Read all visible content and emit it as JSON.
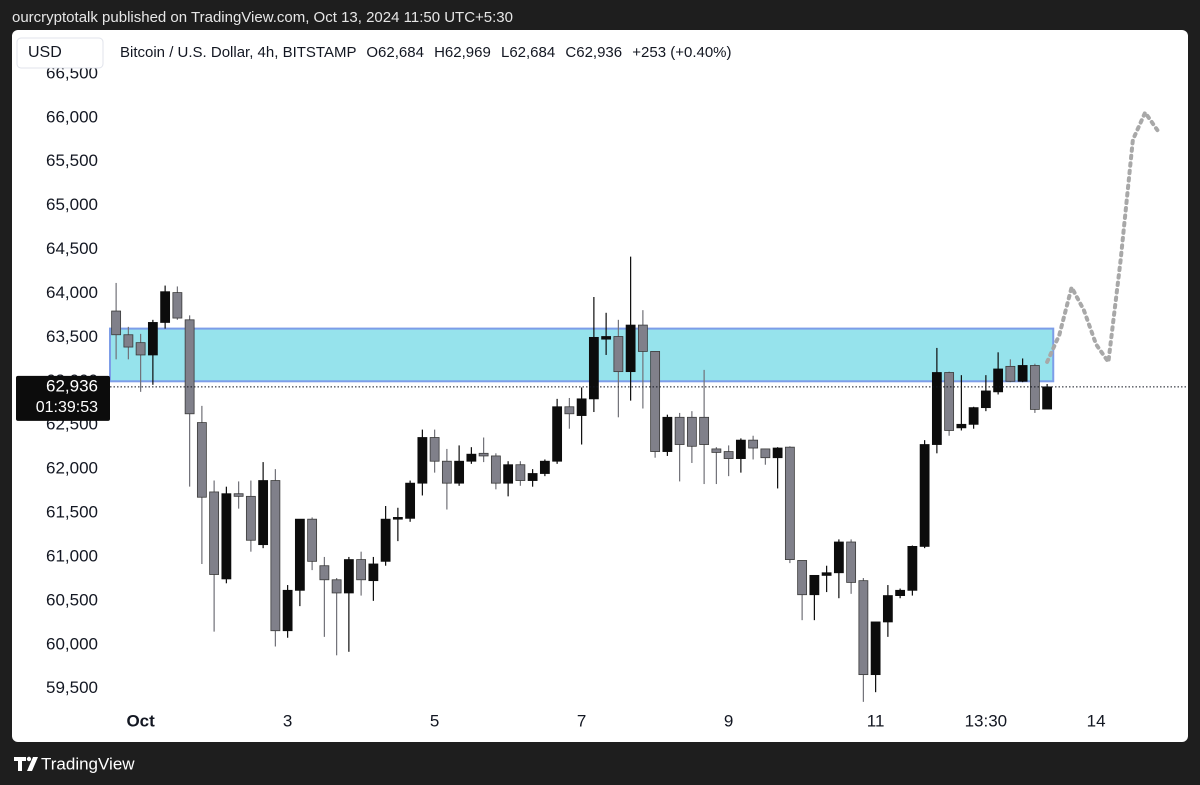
{
  "header": {
    "publisher": "ourcryptotalk published on TradingView.com, Oct 13, 2024 11:50 UTC+5:30",
    "brand": "TradingView"
  },
  "chart_data": {
    "type": "candlestick",
    "currency": "USD",
    "symbol": "Bitcoin / U.S. Dollar, 4h, BITSTAMP",
    "ohlc_labels": [
      "O62,684",
      "H62,969",
      "L62,684",
      "C62,936"
    ],
    "change": "+253 (+0.40%)",
    "last_price": {
      "value": 62936,
      "label": "62,936"
    },
    "countdown": "01:39:53",
    "up_color": "#0c0c0c",
    "down_color": "#80808a",
    "zone": [
      63000,
      63600
    ],
    "zone_color": "#96e3ec",
    "projection_color": "#a8a8a8",
    "grid": false,
    "ylim": [
      59280,
      67000
    ],
    "yticks": [
      {
        "value": 59500,
        "label": "59,500"
      },
      {
        "value": 60000,
        "label": "60,000"
      },
      {
        "value": 60500,
        "label": "60,500"
      },
      {
        "value": 61000,
        "label": "61,000"
      },
      {
        "value": 61500,
        "label": "61,500"
      },
      {
        "value": 62000,
        "label": "62,000"
      },
      {
        "value": 62500,
        "label": "62,500"
      },
      {
        "value": 63000,
        "label": "63,000"
      },
      {
        "value": 63500,
        "label": "63,500"
      },
      {
        "value": 64000,
        "label": "64,000"
      },
      {
        "value": 64500,
        "label": "64,500"
      },
      {
        "value": 65000,
        "label": "65,000"
      },
      {
        "value": 65500,
        "label": "65,500"
      },
      {
        "value": 66000,
        "label": "66,000"
      },
      {
        "value": 66500,
        "label": "66,500"
      }
    ],
    "categories": [
      null,
      null,
      "Oct",
      null,
      null,
      null,
      null,
      null,
      null,
      null,
      null,
      null,
      null,
      null,
      "3",
      null,
      null,
      null,
      null,
      null,
      null,
      null,
      null,
      null,
      null,
      null,
      "5",
      null,
      null,
      null,
      null,
      null,
      null,
      null,
      null,
      null,
      null,
      null,
      "7",
      null,
      null,
      null,
      null,
      null,
      null,
      null,
      null,
      null,
      null,
      null,
      "9",
      null,
      null,
      null,
      null,
      null,
      null,
      null,
      null,
      null,
      null,
      null,
      "11",
      null,
      null,
      null,
      null,
      null,
      null,
      null,
      null,
      "13:30",
      null,
      null,
      null,
      null,
      null,
      null,
      null,
      null,
      "14",
      null,
      null,
      null,
      null,
      null,
      null,
      null
    ],
    "open": [
      63800,
      63530,
      63440,
      63300,
      63670,
      64010,
      63700,
      62530,
      61740,
      60750,
      61720,
      61690,
      61140,
      61870,
      60160,
      60620,
      61430,
      60900,
      60740,
      60590,
      60970,
      60730,
      60950,
      61430,
      61440,
      61840,
      62360,
      62090,
      61840,
      62090,
      62180,
      62150,
      61840,
      62050,
      61870,
      61950,
      62090,
      62710,
      62610,
      62800,
      63480,
      63510,
      63110,
      63640,
      63340,
      62200,
      62590,
      62590,
      62590,
      62230,
      62200,
      62120,
      62330,
      62230,
      62130,
      62250,
      60960,
      60570,
      60790,
      60820,
      61170,
      60730,
      59660,
      60260,
      60560,
      60620,
      61120,
      62280,
      63100,
      62470,
      62510,
      62700,
      62880,
      63170,
      63000,
      63180,
      62684,
      null,
      null,
      null,
      null,
      null,
      null,
      null,
      null,
      null,
      null,
      null
    ],
    "high": [
      64120,
      63620,
      63540,
      63700,
      64090,
      64080,
      63750,
      62720,
      61870,
      61800,
      61860,
      61870,
      62080,
      62000,
      60680,
      61430,
      61450,
      61000,
      60760,
      61000,
      61060,
      61000,
      61580,
      61560,
      61870,
      62450,
      62450,
      62230,
      62270,
      62250,
      62360,
      62180,
      62090,
      62090,
      62000,
      62110,
      62800,
      62810,
      62930,
      63960,
      63780,
      63700,
      64420,
      63810,
      63340,
      62620,
      62640,
      62660,
      63130,
      62250,
      62270,
      62350,
      62380,
      62230,
      62250,
      62260,
      60960,
      60790,
      60900,
      61200,
      61200,
      60760,
      60260,
      60680,
      60640,
      61130,
      62330,
      63380,
      63110,
      63070,
      62710,
      63070,
      63330,
      63250,
      63260,
      63200,
      62969,
      null,
      null,
      null,
      null,
      null,
      null,
      null,
      null,
      null,
      null,
      null
    ],
    "low": [
      63250,
      63250,
      62880,
      62960,
      63600,
      63700,
      61800,
      60920,
      60150,
      60700,
      61550,
      61060,
      61100,
      59980,
      60080,
      60440,
      60850,
      60090,
      59880,
      59920,
      60560,
      60500,
      60900,
      61180,
      61400,
      61700,
      61960,
      61540,
      61810,
      62060,
      62080,
      61770,
      61690,
      61810,
      61800,
      61920,
      62060,
      62460,
      62280,
      62650,
      63300,
      62590,
      62780,
      62690,
      62130,
      62150,
      61860,
      62070,
      61830,
      61830,
      61920,
      61960,
      62110,
      62050,
      61780,
      60930,
      60280,
      60280,
      60600,
      60530,
      60580,
      59350,
      59460,
      60090,
      60530,
      60560,
      61100,
      62180,
      62380,
      62440,
      62460,
      62660,
      62850,
      62990,
      62990,
      62640,
      62684,
      null,
      null,
      null,
      null,
      null,
      null,
      null,
      null,
      null,
      null,
      null
    ],
    "close": [
      63530,
      63390,
      63300,
      63670,
      64020,
      63720,
      62630,
      61680,
      60800,
      61720,
      61690,
      61190,
      61870,
      60160,
      60620,
      61430,
      60950,
      60740,
      60590,
      60970,
      60740,
      60920,
      61430,
      61450,
      61840,
      62360,
      62090,
      61840,
      62090,
      62170,
      62150,
      61840,
      62050,
      61870,
      61950,
      62090,
      62710,
      62630,
      62800,
      63500,
      63510,
      63110,
      63640,
      63340,
      62200,
      62590,
      62280,
      62260,
      62280,
      62190,
      62120,
      62330,
      62240,
      62130,
      62240,
      60970,
      60570,
      60790,
      60820,
      61170,
      60710,
      59660,
      60260,
      60560,
      60620,
      61120,
      62280,
      63100,
      62440,
      62510,
      62700,
      62890,
      63140,
      63000,
      63180,
      62680,
      62936,
      null,
      null,
      null,
      null,
      null,
      null,
      null,
      null,
      null,
      null,
      null
    ],
    "projection": [
      null,
      null,
      null,
      null,
      null,
      null,
      null,
      null,
      null,
      null,
      null,
      null,
      null,
      null,
      null,
      null,
      null,
      null,
      null,
      null,
      null,
      null,
      null,
      null,
      null,
      null,
      null,
      null,
      null,
      null,
      null,
      null,
      null,
      null,
      null,
      null,
      null,
      null,
      null,
      null,
      null,
      null,
      null,
      null,
      null,
      null,
      null,
      null,
      null,
      null,
      null,
      null,
      null,
      null,
      null,
      null,
      null,
      null,
      null,
      null,
      null,
      null,
      null,
      null,
      null,
      null,
      null,
      null,
      null,
      null,
      null,
      null,
      null,
      null,
      null,
      null,
      63220,
      63530,
      64070,
      63810,
      63420,
      63220,
      64380,
      65750,
      66060,
      65860,
      null,
      null
    ]
  }
}
